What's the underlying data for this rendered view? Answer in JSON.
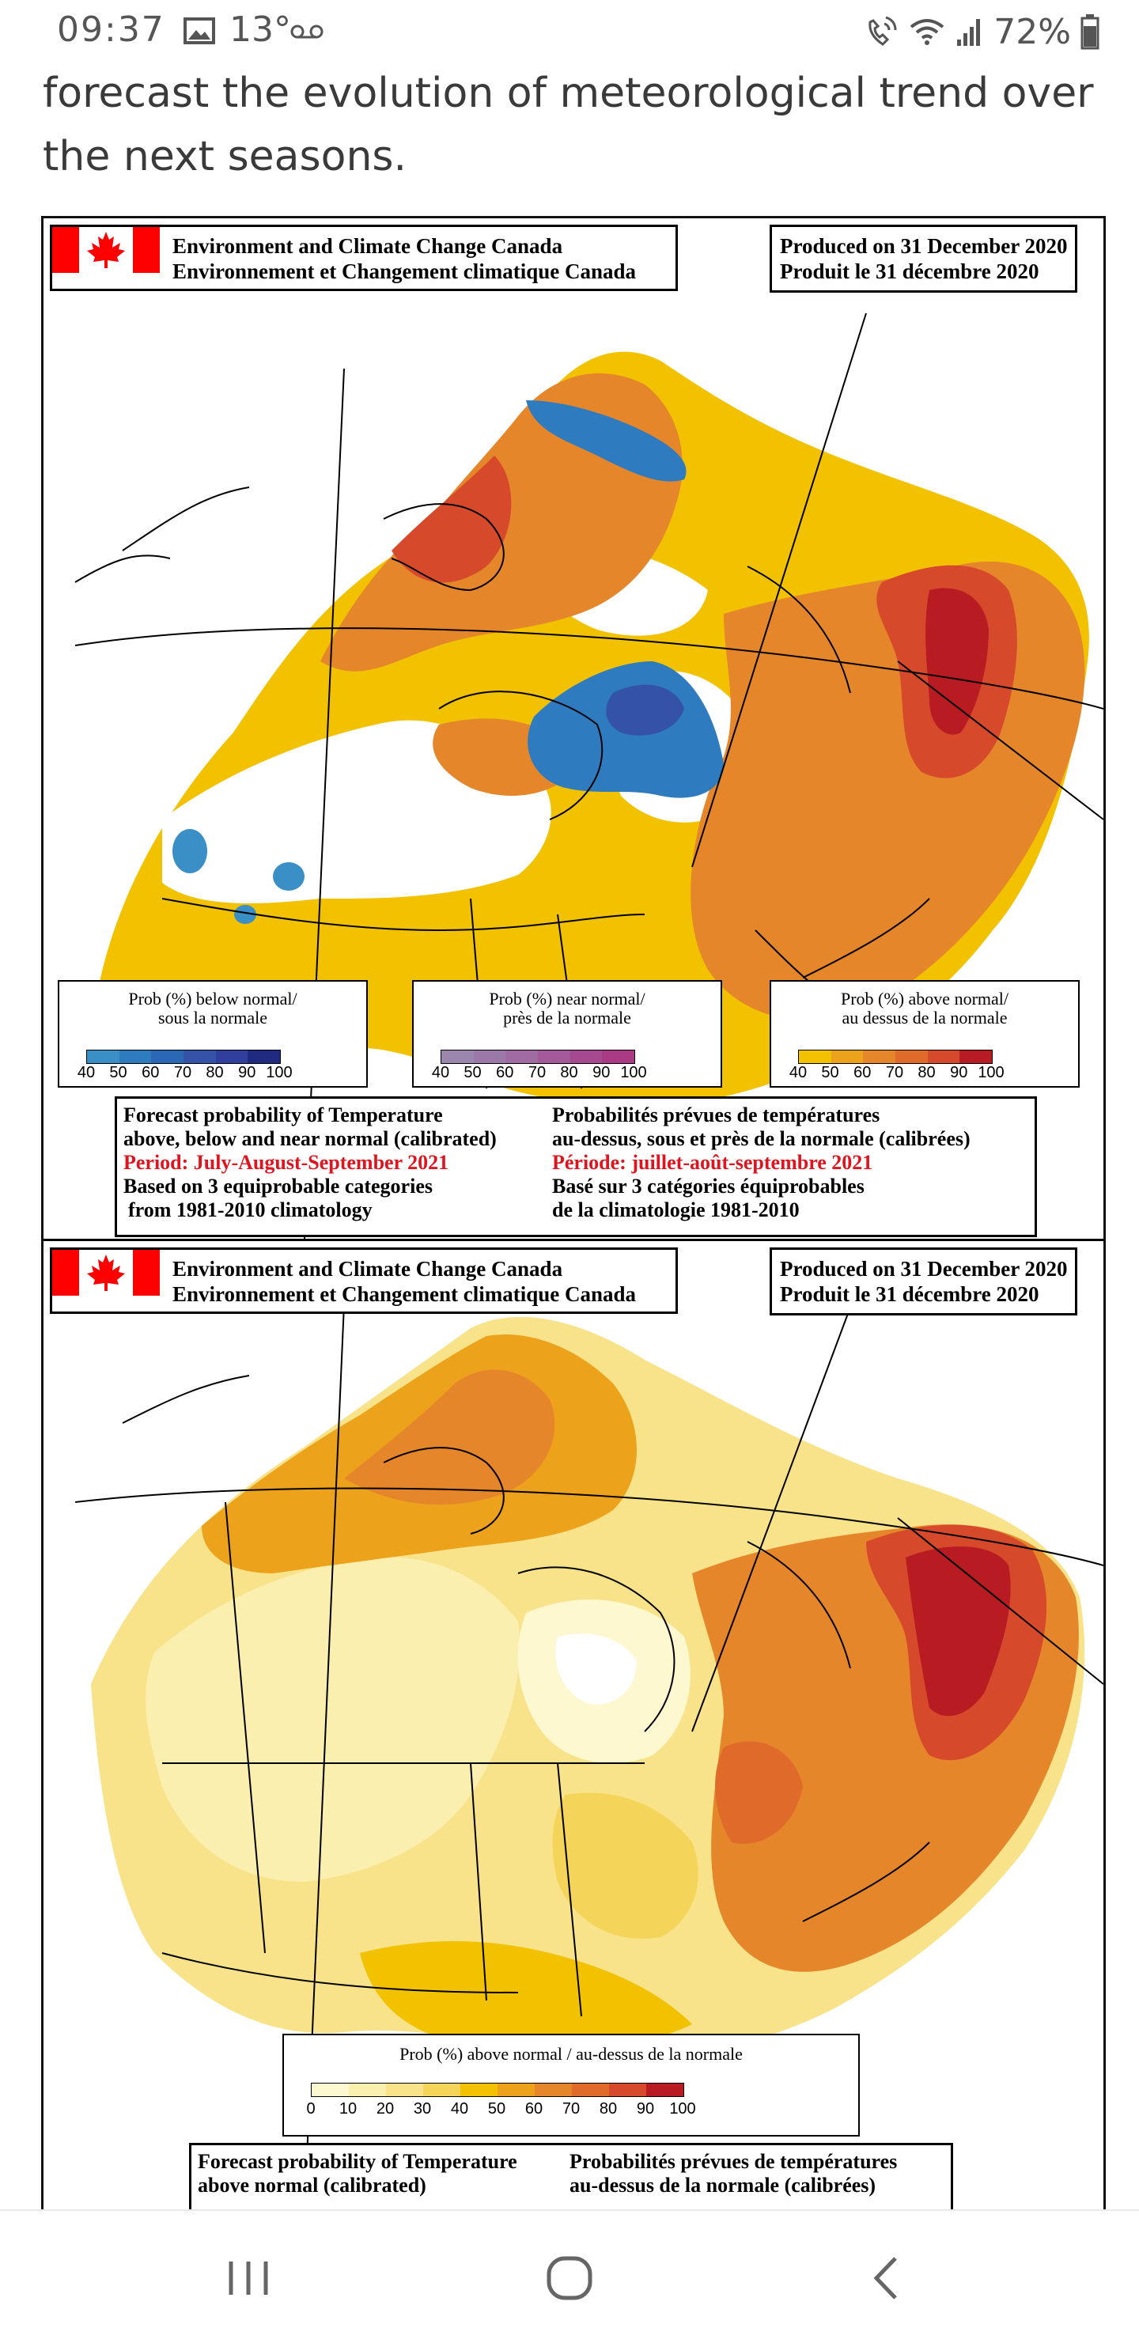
{
  "status_bar": {
    "time": "09:37",
    "temperature": "13°",
    "battery": "72%",
    "icons": [
      "gallery-icon",
      "voicemail-icon",
      "hd-call-icon",
      "wifi-icon",
      "signal-icon",
      "battery-icon"
    ]
  },
  "article": {
    "text_line1": "forecast the evolution of meteorological trend over",
    "text_line2": "the next seasons."
  },
  "map1": {
    "agency_en": "Environment and Climate Change Canada",
    "agency_fr": "Environnement et Changement climatique Canada",
    "produced_en": "Produced on 31 December 2020",
    "produced_fr": "Produit le 31 décembre 2020",
    "legend_below_title1": "Prob (%) below normal/",
    "legend_below_title2": "sous la normale",
    "legend_near_title1": "Prob (%) near normal/",
    "legend_near_title2": "près de la normale",
    "legend_above_title1": "Prob (%) above normal/",
    "legend_above_title2": "au dessus de la normale",
    "ticks": [
      "40",
      "50",
      "60",
      "70",
      "80",
      "90",
      "100"
    ],
    "info_en_1": "Forecast probability of Temperature",
    "info_en_2": "above, below and near normal (calibrated)",
    "info_en_3": "Period: July-August-September 2021",
    "info_en_4": "Based on 3 equiprobable categories",
    "info_en_5": "from 1981-2010 climatology",
    "info_fr_1": "Probabilités prévues de températures",
    "info_fr_2": "au-dessus, sous et près de la normale (calibrées)",
    "info_fr_3": "Période: juillet-août-septembre 2021",
    "info_fr_4": "Basé sur 3 catégories équiprobables",
    "info_fr_5": "de la climatologie 1981-2010"
  },
  "map2": {
    "agency_en": "Environment and Climate Change Canada",
    "agency_fr": "Environnement et Changement climatique Canada",
    "produced_en": "Produced on 31 December 2020",
    "produced_fr": "Produit le 31 décembre 2020",
    "legend_title": "Prob (%) above normal / au-dessus de la normale",
    "ticks": [
      "0",
      "10",
      "20",
      "30",
      "40",
      "50",
      "60",
      "70",
      "80",
      "90",
      "100"
    ],
    "info_en_1": "Forecast probability of Temperature",
    "info_en_2": "above normal (calibrated)",
    "info_fr_1": "Probabilités prévues de températures",
    "info_fr_2": "au-dessus de la normale (calibrées)"
  },
  "colors": {
    "below": [
      "#3a8fc7",
      "#2f7bbf",
      "#2a67b4",
      "#3352a8",
      "#2f3f9b",
      "#1f2a80"
    ],
    "near": [
      "#9b86ad",
      "#9a78a8",
      "#a06aa3",
      "#a35a9b",
      "#a54a90",
      "#a83b84"
    ],
    "above": [
      "#f2c200",
      "#eca21a",
      "#e6862a",
      "#e06a2a",
      "#d64a2b",
      "#b81c22"
    ],
    "above_full": [
      "#fdf8d0",
      "#fbefb0",
      "#f8e38a",
      "#f5d45a",
      "#f2c200",
      "#eca21a",
      "#e6862a",
      "#e06a2a",
      "#d64a2b",
      "#b81c22"
    ],
    "flag_red": "#ff0000"
  },
  "nav_bar": {
    "icons": [
      "recent-apps-icon",
      "home-icon",
      "back-icon"
    ]
  }
}
